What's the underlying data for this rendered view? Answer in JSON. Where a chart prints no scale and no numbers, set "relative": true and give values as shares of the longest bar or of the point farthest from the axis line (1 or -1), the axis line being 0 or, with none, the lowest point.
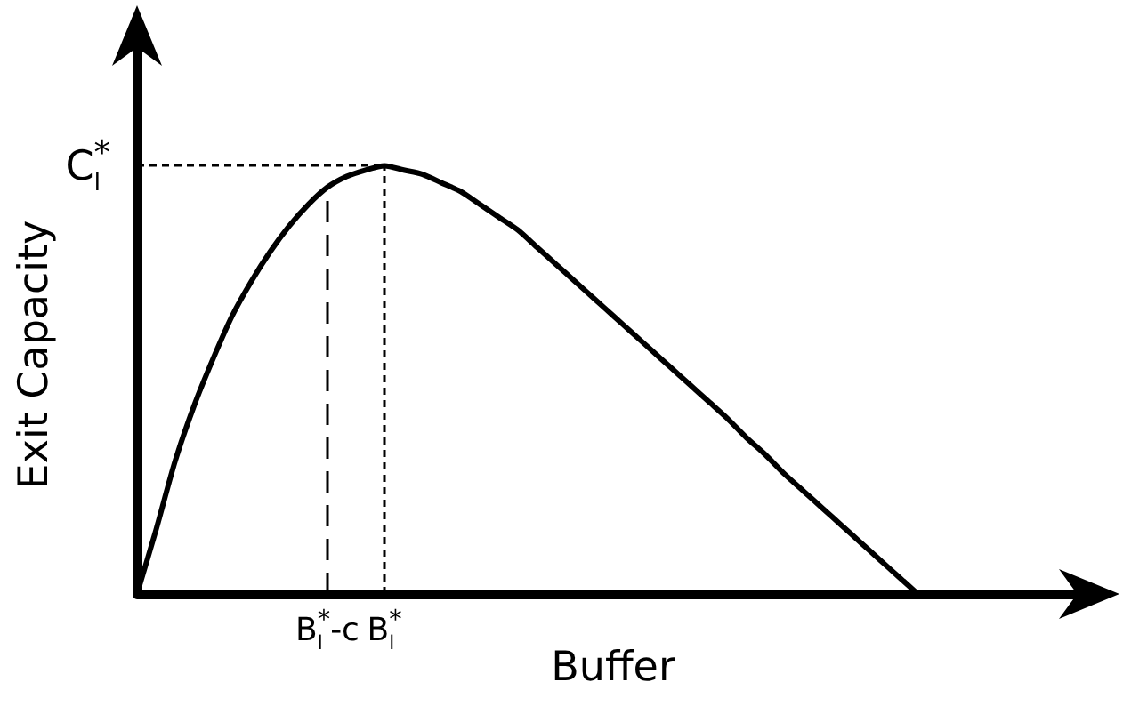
{
  "chart_data": {
    "type": "line",
    "xlabel": "Buffer",
    "ylabel": "Exit Capacity",
    "relative": true,
    "marker": "none",
    "categories": [
      null,
      null,
      null,
      null,
      null,
      null,
      null,
      null,
      null,
      null,
      "B$_{l}$$^{*}$-c",
      null,
      null,
      "B$_{l}$$^{*}$",
      null,
      null,
      null,
      null,
      null,
      null,
      null,
      null,
      null,
      null,
      null,
      null,
      null,
      null,
      null,
      null,
      null,
      null,
      null,
      null,
      null,
      null,
      null,
      null,
      null,
      null,
      null,
      null
    ],
    "series": [
      {
        "color": "#000000",
        "values": [
          0,
          0.15,
          0.31,
          0.44,
          0.55,
          0.65,
          0.73,
          0.8,
          0.86,
          0.91,
          0.95,
          0.975,
          0.99,
          1,
          0.99,
          0.98,
          0.96,
          0.94,
          0.91,
          0.88,
          0.85,
          0.81,
          0.77,
          0.73,
          0.69,
          0.65,
          0.61,
          0.57,
          0.53,
          0.49,
          0.45,
          0.41,
          0.365,
          0.325,
          0.28,
          0.24,
          0.2,
          0.16,
          0.12,
          0.08,
          0.04,
          0
        ]
      }
    ],
    "ref_lines": [
      {
        "axis": "y",
        "value": 1,
        "label": "C$_{l}$$^{*}$",
        "line_style": "dotted"
      },
      {
        "axis": "x",
        "value": "B$_{l}$$^{*}$-c",
        "line_style": "dashed"
      },
      {
        "axis": "x",
        "value": "B$_{l}$$^{*}$",
        "line_style": "dotted"
      }
    ]
  }
}
